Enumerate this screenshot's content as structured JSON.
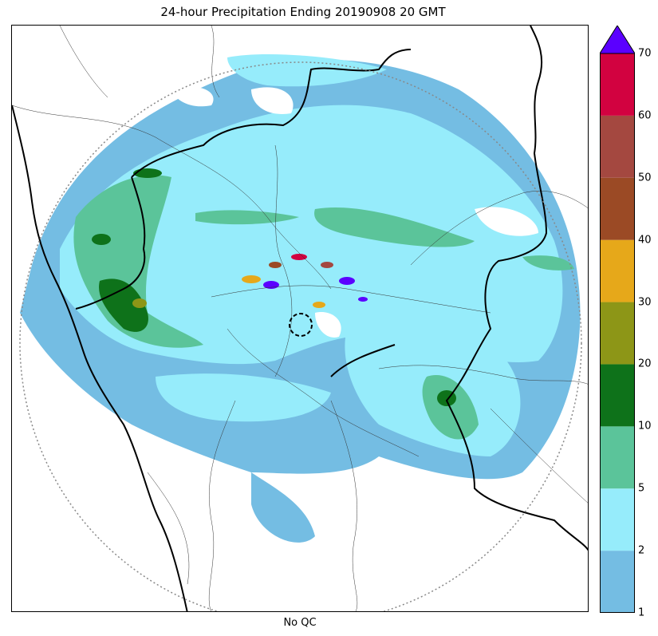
{
  "title": "24-hour Precipitation Ending 20190908 20 GMT",
  "xlabel": "No QC",
  "legend": {
    "units": "",
    "bins": [
      {
        "from": 1,
        "to": 2,
        "color": "#74bde3"
      },
      {
        "from": 2,
        "to": 5,
        "color": "#96ecfb"
      },
      {
        "from": 5,
        "to": 10,
        "color": "#5bc49a"
      },
      {
        "from": 10,
        "to": 20,
        "color": "#0e721a"
      },
      {
        "from": 20,
        "to": 30,
        "color": "#8d9617"
      },
      {
        "from": 30,
        "to": 40,
        "color": "#e6a81a"
      },
      {
        "from": 40,
        "to": 50,
        "color": "#9b4a25"
      },
      {
        "from": 50,
        "to": 60,
        "color": "#a44840"
      },
      {
        "from": 60,
        "to": 70,
        "color": "#d20240"
      }
    ],
    "extend_color": "#5b00ff",
    "ticks": [
      "1",
      "2",
      "5",
      "10",
      "20",
      "30",
      "40",
      "50",
      "60",
      "70"
    ]
  },
  "map_features": {
    "radar_range_ring": "dotted grey",
    "radar_site_marker": "dashed black circle",
    "borders": [
      "coastline",
      "state boundaries",
      "district boundaries"
    ]
  }
}
